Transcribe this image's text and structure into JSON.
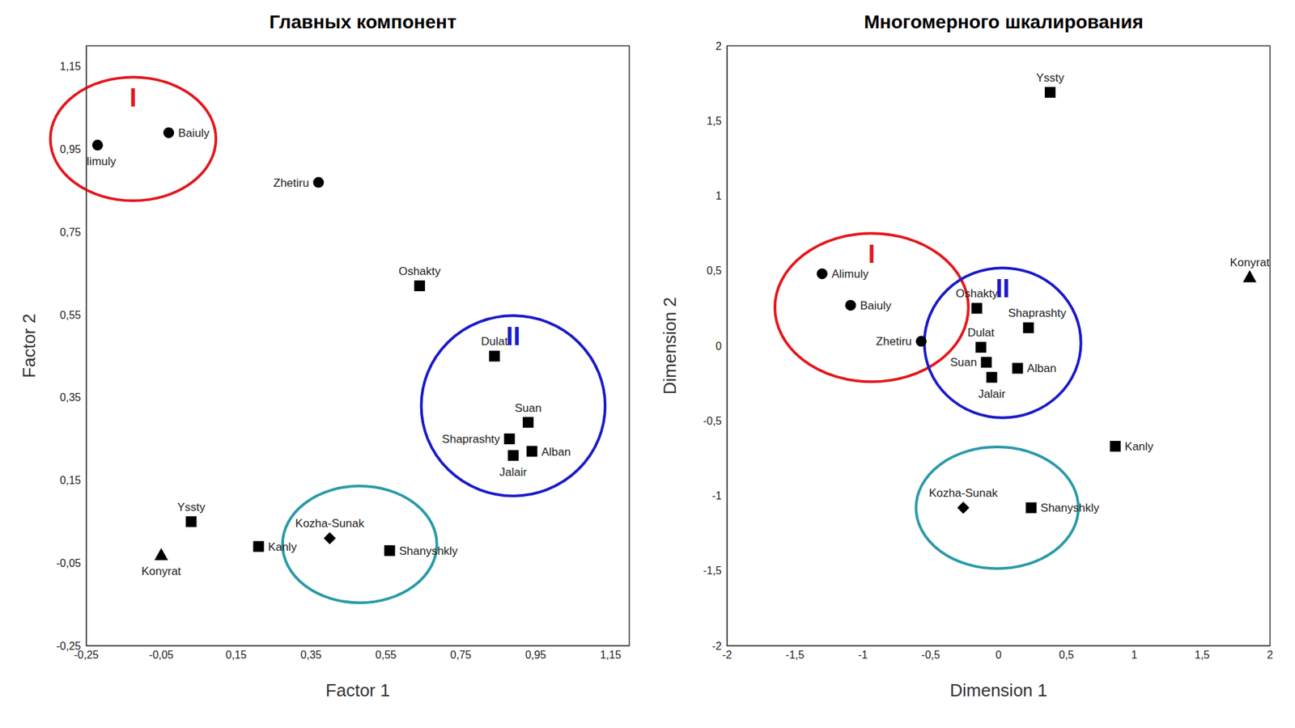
{
  "chart_data": [
    {
      "type": "scatter",
      "title": "Главных компонент",
      "x_label": "Factor 1",
      "y_label": "Factor 2",
      "xlim": [
        -0.25,
        1.2
      ],
      "ylim": [
        -0.25,
        1.2
      ],
      "grid": false,
      "xticks": [
        {
          "value": -0.25,
          "label": "-0,25"
        },
        {
          "value": -0.05,
          "label": "-0,05"
        },
        {
          "value": 0.15,
          "label": "0,15"
        },
        {
          "value": 0.35,
          "label": "0,35"
        },
        {
          "value": 0.55,
          "label": "0,55"
        },
        {
          "value": 0.75,
          "label": "0,75"
        },
        {
          "value": 0.95,
          "label": "0,95"
        },
        {
          "value": 1.15,
          "label": "1,15"
        }
      ],
      "yticks": [
        {
          "value": -0.25,
          "label": "-0,25"
        },
        {
          "value": -0.05,
          "label": "-0,05"
        },
        {
          "value": 0.15,
          "label": "0,15"
        },
        {
          "value": 0.35,
          "label": "0,35"
        },
        {
          "value": 0.55,
          "label": "0,55"
        },
        {
          "value": 0.75,
          "label": "0,75"
        },
        {
          "value": 0.95,
          "label": "0,95"
        },
        {
          "value": 1.15,
          "label": "1,15"
        }
      ],
      "series": [
        {
          "marker": "circle",
          "color": "#000000",
          "points": [
            {
              "label": "Alimuly",
              "x": -0.22,
              "y": 0.96
            },
            {
              "label": "Baiuly",
              "x": -0.03,
              "y": 0.99
            },
            {
              "label": "Zhetiru",
              "x": 0.37,
              "y": 0.87
            }
          ]
        },
        {
          "marker": "square",
          "color": "#000000",
          "points": [
            {
              "label": "Oshakty",
              "x": 0.64,
              "y": 0.62
            },
            {
              "label": "Dulat",
              "x": 0.84,
              "y": 0.45
            },
            {
              "label": "Suan",
              "x": 0.93,
              "y": 0.29
            },
            {
              "label": "Shaprashty",
              "x": 0.88,
              "y": 0.25
            },
            {
              "label": "Alban",
              "x": 0.94,
              "y": 0.22
            },
            {
              "label": "Jalair",
              "x": 0.89,
              "y": 0.21
            },
            {
              "label": "Yssty",
              "x": 0.03,
              "y": 0.05
            },
            {
              "label": "Kanly",
              "x": 0.21,
              "y": -0.01
            },
            {
              "label": "Shanyshkly",
              "x": 0.56,
              "y": -0.02
            }
          ]
        },
        {
          "marker": "triangle",
          "color": "#000000",
          "points": [
            {
              "label": "Konyrat",
              "x": -0.05,
              "y": -0.03
            }
          ]
        },
        {
          "marker": "diamond",
          "color": "#000000",
          "points": [
            {
              "label": "Kozha-Sunak",
              "x": 0.4,
              "y": 0.01
            }
          ]
        }
      ],
      "groups": [
        {
          "label": "I",
          "color": "#e3171d",
          "members": [
            "Alimuly",
            "Baiuly"
          ]
        },
        {
          "label": "II",
          "color": "#1a1ac8",
          "members": [
            "Dulat",
            "Suan",
            "Shaprashty",
            "Alban",
            "Jalair"
          ]
        },
        {
          "color": "#2a9aa8",
          "members": [
            "Kozha-Sunak",
            "Shanyshkly"
          ]
        }
      ]
    },
    {
      "type": "scatter",
      "title": "Многомерного шкалирования",
      "x_label": "Dimension 1",
      "y_label": "Dimension 2",
      "xlim": [
        -2,
        2
      ],
      "ylim": [
        -2,
        2
      ],
      "grid": false,
      "xticks": [
        -2,
        {
          "value": -1.5,
          "label": "-1,5"
        },
        -1,
        {
          "value": -0.5,
          "label": "-0,5"
        },
        0,
        {
          "value": 0.5,
          "label": "0,5"
        },
        1,
        {
          "value": 1.5,
          "label": "1,5"
        },
        2
      ],
      "yticks": [
        -2,
        {
          "value": -1.5,
          "label": "-1,5"
        },
        -1,
        {
          "value": -0.5,
          "label": "-0,5"
        },
        0,
        {
          "value": 0.5,
          "label": "0,5"
        },
        1,
        {
          "value": 1.5,
          "label": "1,5"
        },
        2
      ],
      "series": [
        {
          "marker": "circle",
          "color": "#000000",
          "points": [
            {
              "label": "Alimuly",
              "x": -1.3,
              "y": 0.48
            },
            {
              "label": "Baiuly",
              "x": -1.09,
              "y": 0.27
            },
            {
              "label": "Zhetiru",
              "x": -0.57,
              "y": 0.03
            }
          ]
        },
        {
          "marker": "square",
          "color": "#000000",
          "points": [
            {
              "label": "Oshakty",
              "x": -0.16,
              "y": 0.25
            },
            {
              "label": "Dulat",
              "x": -0.13,
              "y": -0.01
            },
            {
              "label": "Suan",
              "x": -0.09,
              "y": -0.11
            },
            {
              "label": "Shaprashty",
              "x": 0.22,
              "y": 0.12
            },
            {
              "label": "Alban",
              "x": 0.14,
              "y": -0.15
            },
            {
              "label": "Jalair",
              "x": -0.05,
              "y": -0.21
            },
            {
              "label": "Yssty",
              "x": 0.38,
              "y": 1.69
            },
            {
              "label": "Kanly",
              "x": 0.86,
              "y": -0.67
            },
            {
              "label": "Shanyshkly",
              "x": 0.24,
              "y": -1.08
            }
          ]
        },
        {
          "marker": "triangle",
          "color": "#000000",
          "points": [
            {
              "label": "Konyrat",
              "x": 1.85,
              "y": 0.46
            }
          ]
        },
        {
          "marker": "diamond",
          "color": "#000000",
          "points": [
            {
              "label": "Kozha-Sunak",
              "x": -0.26,
              "y": -1.08
            }
          ]
        }
      ],
      "groups": [
        {
          "label": "I",
          "color": "#e3171d",
          "members": [
            "Alimuly",
            "Baiuly",
            "Zhetiru"
          ]
        },
        {
          "label": "II",
          "color": "#1a1ac8",
          "members": [
            "Oshakty",
            "Dulat",
            "Suan",
            "Shaprashty",
            "Alban",
            "Jalair"
          ]
        },
        {
          "color": "#2a9aa8",
          "members": [
            "Kozha-Sunak",
            "Shanyshkly"
          ]
        }
      ]
    }
  ]
}
